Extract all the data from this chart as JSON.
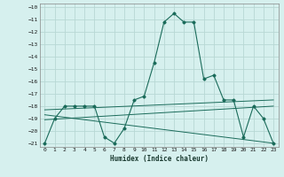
{
  "xlabel": "Humidex (Indice chaleur)",
  "bg_color": "#d6f0ee",
  "grid_color": "#b8d8d4",
  "line_color": "#1a6b5a",
  "xlim": [
    -0.5,
    23.5
  ],
  "ylim": [
    -21.3,
    -9.7
  ],
  "xticks": [
    0,
    1,
    2,
    3,
    4,
    5,
    6,
    7,
    8,
    9,
    10,
    11,
    12,
    13,
    14,
    15,
    16,
    17,
    18,
    19,
    20,
    21,
    22,
    23
  ],
  "yticks": [
    -10,
    -11,
    -12,
    -13,
    -14,
    -15,
    -16,
    -17,
    -18,
    -19,
    -20,
    -21
  ],
  "humidex_curve": [
    -21.0,
    -19.0,
    -18.0,
    -18.0,
    -18.0,
    -18.0,
    -20.5,
    -21.0,
    -19.8,
    -17.5,
    -17.2,
    -14.5,
    -11.2,
    -10.5,
    -11.2,
    -11.2,
    -15.8,
    -15.5,
    -17.5,
    -17.5,
    -20.5,
    -18.0,
    -19.0,
    -21.0
  ],
  "line1_x": [
    0,
    23
  ],
  "line1_y": [
    -18.3,
    -17.5
  ],
  "line2_x": [
    0,
    23
  ],
  "line2_y": [
    -18.7,
    -21.0
  ],
  "line3_x": [
    0,
    23
  ],
  "line3_y": [
    -19.1,
    -18.0
  ]
}
